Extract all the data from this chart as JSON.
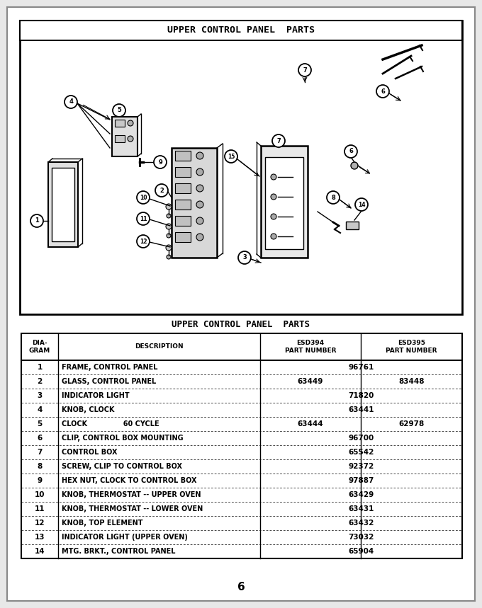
{
  "diagram_title": "UPPER CONTROL PANEL  PARTS",
  "table_title": "UPPER CONTROL PANEL  PARTS",
  "bg_color": "#e8e8e8",
  "page_bg": "#f5f5f5",
  "table_data": [
    {
      "num": "1",
      "desc": "FRAME, CONTROL PANEL",
      "p394": "96761",
      "p394_span": true,
      "p395": ""
    },
    {
      "num": "2",
      "desc": "GLASS, CONTROL PANEL",
      "p394": "63449",
      "p394_span": false,
      "p395": "83448"
    },
    {
      "num": "3",
      "desc": "INDICATOR LIGHT",
      "p394": "71820",
      "p394_span": true,
      "p395": ""
    },
    {
      "num": "4",
      "desc": "KNOB, CLOCK",
      "p394": "63441",
      "p394_span": true,
      "p395": ""
    },
    {
      "num": "5",
      "desc": "CLOCK               60 CYCLE",
      "p394": "63444",
      "p394_span": false,
      "p395": "62978"
    },
    {
      "num": "6",
      "desc": "CLIP, CONTROL BOX MOUNTING",
      "p394": "96700",
      "p394_span": true,
      "p395": ""
    },
    {
      "num": "7",
      "desc": "CONTROL BOX",
      "p394": "65542",
      "p394_span": true,
      "p395": ""
    },
    {
      "num": "8",
      "desc": "SCREW, CLIP TO CONTROL BOX",
      "p394": "92372",
      "p394_span": true,
      "p395": ""
    },
    {
      "num": "9",
      "desc": "HEX NUT, CLOCK TO CONTROL BOX",
      "p394": "97887",
      "p394_span": true,
      "p395": ""
    },
    {
      "num": "10",
      "desc": "KNOB, THERMOSTAT -- UPPER OVEN",
      "p394": "63429",
      "p394_span": true,
      "p395": ""
    },
    {
      "num": "11",
      "desc": "KNOB, THERMOSTAT -- LOWER OVEN",
      "p394": "63431",
      "p394_span": true,
      "p395": ""
    },
    {
      "num": "12",
      "desc": "KNOB, TOP ELEMENT",
      "p394": "63432",
      "p394_span": true,
      "p395": ""
    },
    {
      "num": "13",
      "desc": "INDICATOR LIGHT (UPPER OVEN)",
      "p394": "73032",
      "p394_span": true,
      "p395": ""
    },
    {
      "num": "14",
      "desc": "MTG. BRKT., CONTROL PANEL",
      "p394": "65904",
      "p394_span": true,
      "p395": ""
    }
  ],
  "footer_num": "6"
}
